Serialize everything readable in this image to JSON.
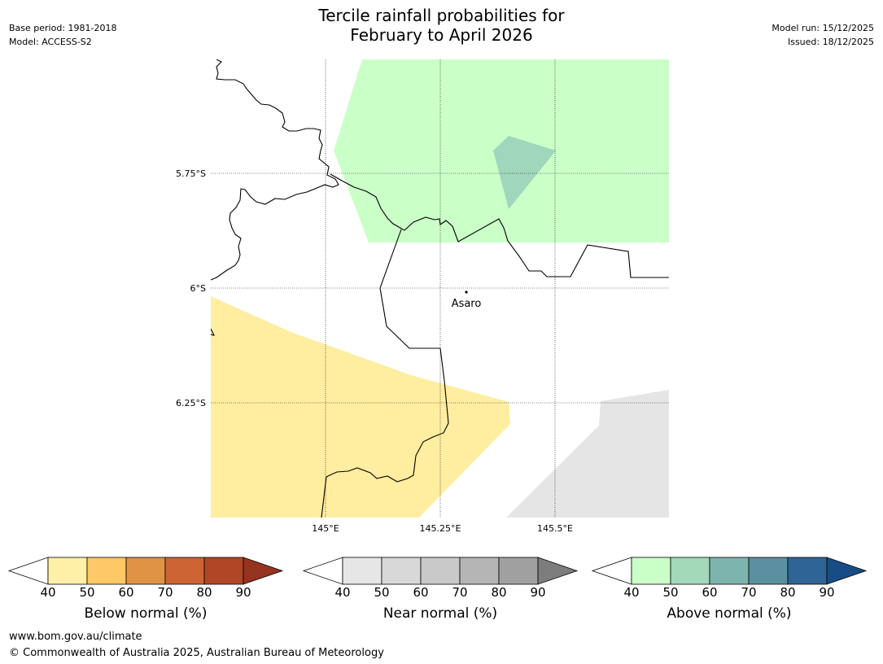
{
  "title": {
    "line1": "Tercile rainfall probabilities for",
    "line2": "February to April 2026"
  },
  "meta": {
    "base_period": "Base period: 1981-2018",
    "model": "Model: ACCESS-S2",
    "model_run": "Model run: 15/12/2025",
    "issued": "Issued: 18/12/2025"
  },
  "map": {
    "lat_labels": [
      "5.75°S",
      "6°S",
      "6.25°S"
    ],
    "lon_labels": [
      "145°E",
      "145.25°E",
      "145.5°E"
    ],
    "place": "Asaro"
  },
  "colorbars": [
    {
      "label": "Below normal (%)",
      "ticks": [
        "40",
        "50",
        "60",
        "70",
        "80",
        "90"
      ],
      "colors": [
        "#fff0a8",
        "#fdc865",
        "#e09245",
        "#cd6433",
        "#b04626",
        "#953320"
      ]
    },
    {
      "label": "Near normal (%)",
      "ticks": [
        "40",
        "50",
        "60",
        "70",
        "80",
        "90"
      ],
      "colors": [
        "#e6e6e6",
        "#d8d8d8",
        "#c9c9c9",
        "#b5b5b5",
        "#a0a0a0",
        "#7d7d7d"
      ]
    },
    {
      "label": "Above normal (%)",
      "ticks": [
        "40",
        "50",
        "60",
        "70",
        "80",
        "90"
      ],
      "colors": [
        "#caffc8",
        "#a3d8b9",
        "#7db5ae",
        "#5a90a0",
        "#2e6596",
        "#174d84"
      ]
    }
  ],
  "footer": {
    "url": "www.bom.gov.au/climate",
    "copyright": "© Commonwealth of Australia 2025, Australian Bureau of Meteorology"
  },
  "colors": {
    "above_40_50": "#caffc8",
    "above_50_60": "#a3d8b9",
    "below_40_50": "#ffeda0",
    "near_40_50": "#e5e5e5"
  }
}
